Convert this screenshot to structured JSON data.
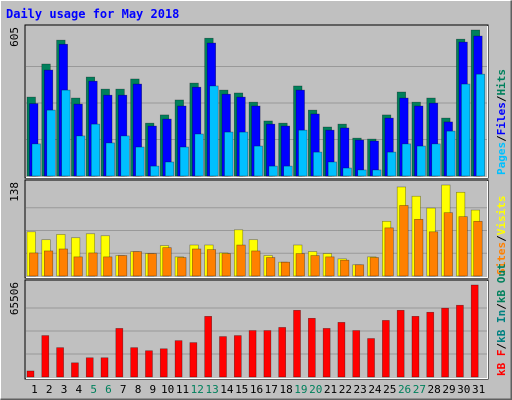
{
  "chart_data": {
    "type": "bar",
    "title": "Daily usage for May 2018",
    "categories": [
      1,
      2,
      3,
      4,
      5,
      6,
      7,
      8,
      9,
      10,
      11,
      12,
      13,
      14,
      15,
      16,
      17,
      18,
      19,
      20,
      21,
      22,
      23,
      24,
      25,
      26,
      27,
      28,
      29,
      30,
      31
    ],
    "category_colors": [
      "#000000",
      "#000000",
      "#000000",
      "#000000",
      "#00805c",
      "#00805c",
      "#000000",
      "#000000",
      "#000000",
      "#000000",
      "#000000",
      "#00805c",
      "#00805c",
      "#000000",
      "#000000",
      "#000000",
      "#000000",
      "#000000",
      "#00805c",
      "#00805c",
      "#000000",
      "#000000",
      "#000000",
      "#000000",
      "#000000",
      "#00805c",
      "#00805c",
      "#000000",
      "#000000",
      "#000000",
      "#000000"
    ],
    "legend_separator": "/",
    "grid": true,
    "panels": [
      {
        "ylim": [
          0,
          605
        ],
        "series": [
          {
            "name": "Pages",
            "color": "#00c0ff",
            "values": [
              133,
              273,
              356,
              166,
              215,
              137,
              166,
              120,
              41,
              58,
              120,
              174,
              373,
              182,
              182,
              124,
              41,
              41,
              190,
              99,
              58,
              33,
              25,
              25,
              99,
              133,
              124,
              133,
              186,
              381,
              422
            ]
          },
          {
            "name": "Files",
            "color": "#0000ff",
            "values": [
              300,
              439,
              546,
              298,
              393,
              335,
              335,
              381,
              207,
              236,
              290,
              368,
              551,
              339,
              327,
              290,
              215,
              207,
              356,
              257,
              190,
              199,
              149,
              145,
              240,
              323,
              290,
              302,
              224,
              555,
              580
            ]
          },
          {
            "name": "Hits",
            "color": "#00805c",
            "values": [
              327,
              464,
              563,
              323,
              410,
              360,
              360,
              402,
              219,
              253,
              315,
              385,
              571,
              356,
              344,
              306,
              228,
              219,
              373,
              273,
              203,
              215,
              157,
              153,
              253,
              348,
              306,
              323,
              240,
              567,
              605
            ]
          }
        ]
      },
      {
        "ylim": [
          0,
          138
        ],
        "series": [
          {
            "name": "Sites",
            "color": "#ff8000",
            "values": [
              35,
              38,
              41,
              29,
              35,
              29,
              31,
              37,
              34,
              43,
              28,
              41,
              40,
              34,
              47,
              38,
              28,
              21,
              34,
              31,
              29,
              24,
              17,
              28,
              73,
              107,
              86,
              67,
              96,
              90,
              83
            ]
          },
          {
            "name": "Visits",
            "color": "#ffff00",
            "values": [
              67,
              55,
              63,
              58,
              64,
              61,
              31,
              37,
              34,
              46,
              29,
              47,
              47,
              35,
              70,
              55,
              31,
              21,
              47,
              37,
              34,
              26,
              17,
              29,
              83,
              135,
              121,
              103,
              138,
              127,
              100
            ]
          }
        ]
      },
      {
        "ylim": [
          0,
          65506
        ],
        "series": [
          {
            "name": "kB F",
            "color": "#ff0000",
            "values": [
              4300,
              29500,
              20900,
              10100,
              13700,
              13700,
              34600,
              20900,
              18700,
              20100,
              25900,
              24500,
              43200,
              28800,
              29500,
              33100,
              33100,
              35300,
              47500,
              41800,
              34600,
              38900,
              33100,
              27400,
              40300,
              47500,
              43200,
              46100,
              49000,
              51100,
              65506
            ]
          },
          {
            "name": "kB In",
            "color": "#008080"
          },
          {
            "name": "kB Out",
            "color": "#00805c"
          }
        ]
      }
    ]
  }
}
